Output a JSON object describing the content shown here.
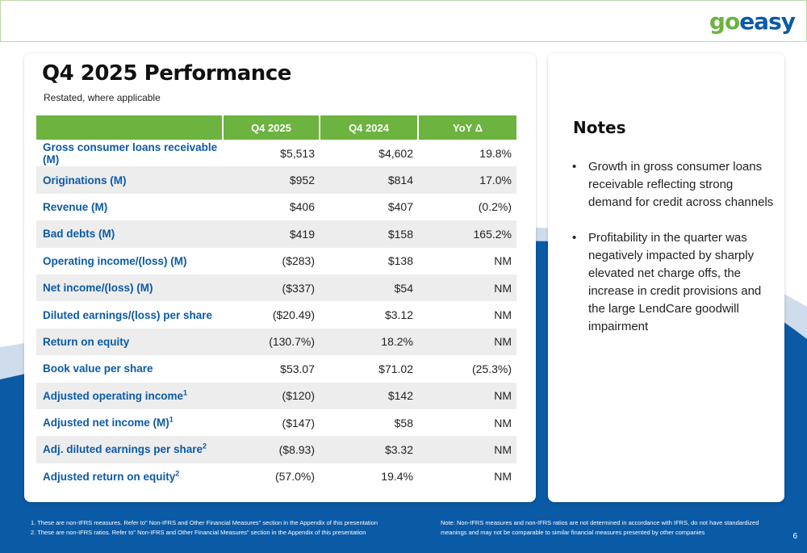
{
  "logo": {
    "part1": "go",
    "part2": "easy"
  },
  "title": "Q4 2025 Performance",
  "subtitle": "Restated, where applicable",
  "table": {
    "headers": [
      "",
      "Q4 2025",
      "Q4 2024",
      "YoY Δ"
    ],
    "rows": [
      {
        "label": "Gross consumer loans receivable (M)",
        "sup": "",
        "q4_2025": "$5,513",
        "q4_2024": "$4,602",
        "yoy": "19.8%"
      },
      {
        "label": "Originations (M)",
        "sup": "",
        "q4_2025": "$952",
        "q4_2024": "$814",
        "yoy": "17.0%"
      },
      {
        "label": "Revenue (M)",
        "sup": "",
        "q4_2025": "$406",
        "q4_2024": "$407",
        "yoy": "(0.2%)"
      },
      {
        "label": "Bad debts (M)",
        "sup": "",
        "q4_2025": "$419",
        "q4_2024": "$158",
        "yoy": "165.2%"
      },
      {
        "label": "Operating income/(loss) (M)",
        "sup": "",
        "q4_2025": "($283)",
        "q4_2024": "$138",
        "yoy": "NM"
      },
      {
        "label": "Net income/(loss) (M)",
        "sup": "",
        "q4_2025": "($337)",
        "q4_2024": "$54",
        "yoy": "NM"
      },
      {
        "label": "Diluted earnings/(loss) per share",
        "sup": "",
        "q4_2025": "($20.49)",
        "q4_2024": "$3.12",
        "yoy": "NM"
      },
      {
        "label": "Return on equity",
        "sup": "",
        "q4_2025": "(130.7%)",
        "q4_2024": "18.2%",
        "yoy": "NM"
      },
      {
        "label": "Book value per share",
        "sup": "",
        "q4_2025": "$53.07",
        "q4_2024": "$71.02",
        "yoy": "(25.3%)"
      },
      {
        "label": "Adjusted operating income",
        "sup": "1",
        "q4_2025": "($120)",
        "q4_2024": "$142",
        "yoy": "NM"
      },
      {
        "label": "Adjusted net income (M)",
        "sup": "1",
        "q4_2025": "($147)",
        "q4_2024": "$58",
        "yoy": "NM"
      },
      {
        "label": "Adj. diluted earnings per share",
        "sup": "2",
        "q4_2025": "($8.93)",
        "q4_2024": "$3.32",
        "yoy": "NM"
      },
      {
        "label": "Adjusted return on equity",
        "sup": "2",
        "q4_2025": "(57.0%)",
        "q4_2024": "19.4%",
        "yoy": "NM"
      }
    ]
  },
  "notes": {
    "title": "Notes",
    "items": [
      "Growth in gross consumer loans receivable reflecting strong demand for credit across channels",
      "Profitability in the quarter was negatively impacted by sharply elevated net charge offs, the increase in credit provisions and the large LendCare goodwill impairment"
    ]
  },
  "footnotes": [
    "1.   These are non-IFRS measures. Refer to\" Non-IFRS and Other Financial Measures\" section in the Appendix of this presentation",
    "2.   These are non-IFRS ratios. Refer to\" Non-IFRS and Other Financial Measures\" section in the Appendix of this presentation"
  ],
  "disclaimer": "Note: Non-IFRS measures and non-IFRS ratios are not determined in accordance with IFRS, do not have standardized meanings and may not be comparable to similar financial measures presented by other companies",
  "page_number": "6",
  "colors": {
    "brand_green": "#6cb33f",
    "brand_blue": "#0b5aa6"
  }
}
